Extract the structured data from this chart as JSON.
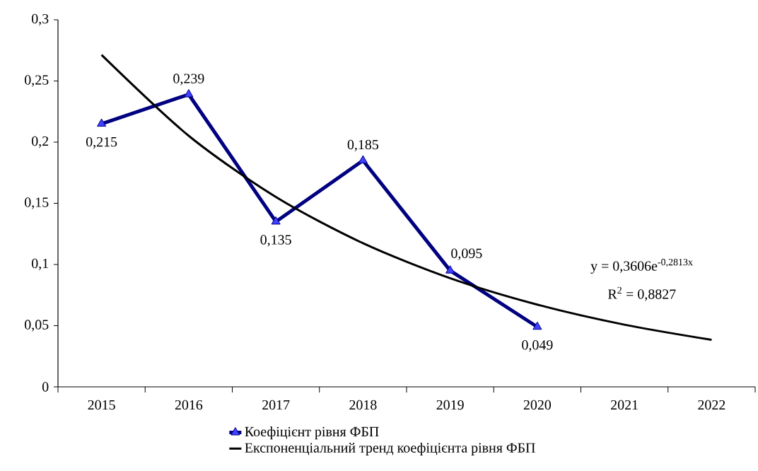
{
  "chart_data": {
    "type": "line",
    "categories": [
      "2015",
      "2016",
      "2017",
      "2018",
      "2019",
      "2020",
      "2021",
      "2022"
    ],
    "series": [
      {
        "name": "Коефіцієнт рівня ФБП",
        "color": "#000080",
        "marker": "triangle",
        "values": [
          0.215,
          0.239,
          0.135,
          0.185,
          0.095,
          0.049,
          null,
          null
        ],
        "value_labels": [
          "0,215",
          "0,239",
          "0,135",
          "0,185",
          "0,095",
          "0,049",
          null,
          null
        ]
      },
      {
        "name": "Експоненціальний тренд коефіцієнта рівня ФБП",
        "color": "#000000",
        "marker": "none",
        "values": [
          0.2713,
          0.2052,
          0.1552,
          0.1174,
          0.0888,
          0.0672,
          0.0508,
          0.0384
        ]
      }
    ],
    "ylim": [
      0,
      0.3
    ],
    "yticks": [
      {
        "value": 0,
        "label": "0"
      },
      {
        "value": 0.05,
        "label": "0,05"
      },
      {
        "value": 0.1,
        "label": "0,1"
      },
      {
        "value": 0.15,
        "label": "0,15"
      },
      {
        "value": 0.2,
        "label": "0,2"
      },
      {
        "value": 0.25,
        "label": "0,25"
      },
      {
        "value": 0.3,
        "label": "0,3"
      }
    ],
    "annotations": [
      "y = 0,3606e$^{-0,2813x}$",
      "R$^{2}$ = 0,8827"
    ],
    "legend": "bottom",
    "grid": false
  }
}
